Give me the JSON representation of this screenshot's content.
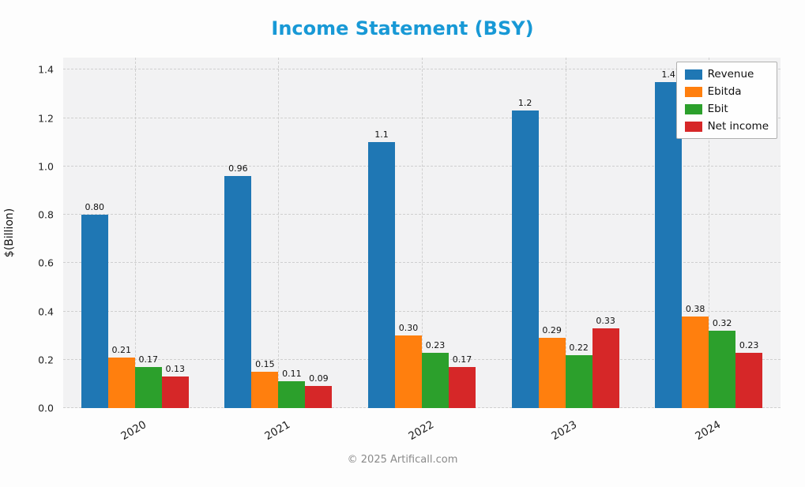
{
  "chart_data": {
    "type": "bar",
    "title": "Income Statement (BSY)",
    "title_color": "#1899d6",
    "xlabel": "",
    "ylabel": "$(Billion)",
    "categories": [
      "2020",
      "2021",
      "2022",
      "2023",
      "2024"
    ],
    "series": [
      {
        "name": "Revenue",
        "color": "#1f77b4",
        "values": [
          0.8,
          0.96,
          1.1,
          1.23,
          1.35
        ],
        "labels": [
          "0.80",
          "0.96",
          "1.1",
          "1.2",
          "1.4"
        ]
      },
      {
        "name": "Ebitda",
        "color": "#ff7f0e",
        "values": [
          0.21,
          0.15,
          0.3,
          0.29,
          0.38
        ],
        "labels": [
          "0.21",
          "0.15",
          "0.30",
          "0.29",
          "0.38"
        ]
      },
      {
        "name": "Ebit",
        "color": "#2ca02c",
        "values": [
          0.17,
          0.11,
          0.23,
          0.22,
          0.32
        ],
        "labels": [
          "0.17",
          "0.11",
          "0.23",
          "0.22",
          "0.32"
        ]
      },
      {
        "name": "Net income",
        "color": "#d62728",
        "values": [
          0.13,
          0.09,
          0.17,
          0.33,
          0.23
        ],
        "labels": [
          "0.13",
          "0.09",
          "0.17",
          "0.33",
          "0.23"
        ]
      }
    ],
    "ylim": [
      0,
      1.4
    ],
    "yticks": [
      "0.0",
      "0.2",
      "0.4",
      "0.6",
      "0.8",
      "1.0",
      "1.2",
      "1.4"
    ],
    "grid": true,
    "grid_style": "dashed",
    "legend_position": "upper right"
  },
  "footer": {
    "text": "© 2025 Artificall.com"
  }
}
